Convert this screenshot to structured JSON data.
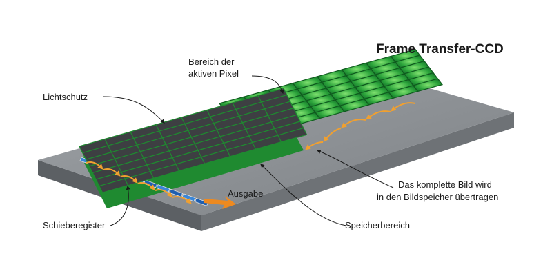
{
  "title": "Frame Transfer-CCD",
  "labels": {
    "active_area": [
      "Bereich der",
      "aktiven Pixel"
    ],
    "light_shield": "Lichtschutz",
    "output": "Ausgabe",
    "shift_register": "Schieberegister",
    "storage_area": "Speicherbereich",
    "transfer": [
      "Das komplette Bild wird",
      "in den Bildspeicher übertragen"
    ]
  },
  "colors": {
    "substrate_top": "#8a8e92",
    "pixel_green": "#2aa23a",
    "pixel_dark": "#3d3f42",
    "arrow_orange": "#f0a030",
    "register_blue": "#2a6fc0"
  }
}
